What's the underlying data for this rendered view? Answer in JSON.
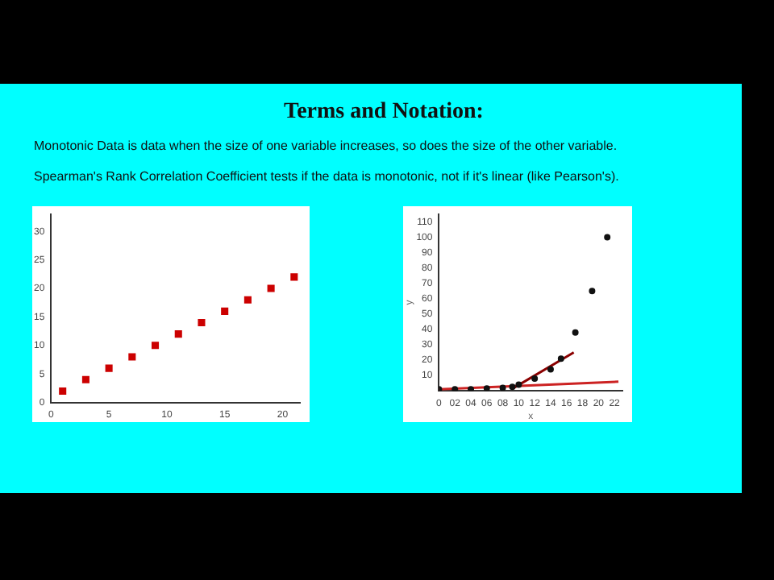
{
  "chart_data": [
    {
      "type": "other",
      "title": "Terms and Notation:",
      "annotations": [
        "Monotonic Data is data when the size of one variable increases, so does the size of the other variable.",
        "Spearman's Rank Correlation Coefficient tests if the data is monotonic, not if it's linear (like Pearson's)."
      ]
    },
    {
      "type": "scatter",
      "x": [
        1,
        3,
        5,
        7,
        9,
        11,
        13,
        15,
        17,
        19,
        21
      ],
      "values": [
        2,
        4,
        6,
        8,
        10,
        12,
        14,
        16,
        18,
        20,
        22
      ],
      "color": "#cc0000",
      "marker": "square",
      "xlim": [
        0,
        21.5
      ],
      "ylim": [
        0,
        33
      ],
      "xticks": [
        0,
        5,
        10,
        15,
        20
      ],
      "yticks": [
        0,
        5,
        10,
        15,
        20,
        25,
        30
      ],
      "grid": false,
      "legend": false
    },
    {
      "type": "scatter",
      "xlabel": "x",
      "ylabel": "y",
      "xlim": [
        0,
        23
      ],
      "ylim": [
        0,
        115
      ],
      "grid": false,
      "legend": false,
      "xticks": [
        0,
        {
          "value": 2,
          "label": "02"
        },
        {
          "value": 4,
          "label": "04"
        },
        {
          "value": 6,
          "label": "06"
        },
        {
          "value": 8,
          "label": "08"
        },
        10,
        12,
        14,
        16,
        18,
        20,
        22
      ],
      "yticks": [
        10,
        20,
        30,
        40,
        50,
        60,
        70,
        80,
        90,
        100,
        110
      ],
      "series": [
        {
          "type": "scatter",
          "color": "#111111",
          "marker": "circle",
          "x": [
            0,
            2,
            4,
            6,
            8,
            9.2,
            10,
            12,
            14,
            15.3,
            17.1,
            19.2,
            21.1
          ],
          "values": [
            1,
            1,
            1,
            1.5,
            2,
            2.6,
            4,
            8,
            14,
            21,
            38,
            65,
            100
          ]
        },
        {
          "type": "line",
          "color": "#8b0000",
          "marker": "none",
          "x": [
            9.4,
            16.9
          ],
          "values": [
            2,
            25
          ]
        },
        {
          "type": "line",
          "color": "#cc2222",
          "marker": "none",
          "x": [
            0,
            22.5
          ],
          "values": [
            1,
            6
          ]
        }
      ]
    }
  ]
}
